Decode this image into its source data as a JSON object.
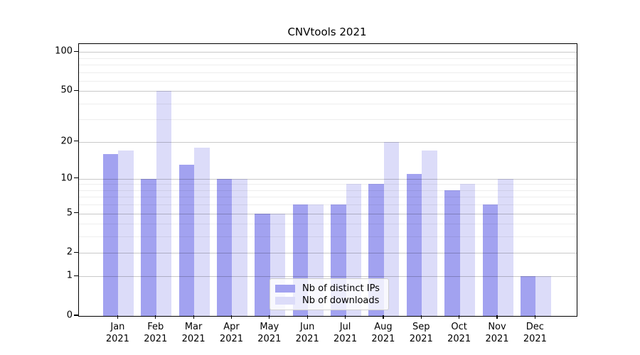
{
  "title": "CNVtools 2021",
  "colors": {
    "distinct_ips_bar": "#a2a2f0",
    "downloads_bar": "#dcdcf9",
    "grid_major": "#c9c9c9",
    "grid_minor": "#ededed",
    "axis": "#000000"
  },
  "legend": {
    "items": [
      {
        "label": "Nb of distinct IPs",
        "color": "#a2a2f0"
      },
      {
        "label": "Nb of downloads",
        "color": "#dcdcf9"
      }
    ]
  },
  "chart_data": {
    "type": "bar",
    "title": "CNVtools 2021",
    "categories": [
      "Jan 2021",
      "Feb 2021",
      "Mar 2021",
      "Apr 2021",
      "May 2021",
      "Jun 2021",
      "Jul 2021",
      "Aug 2021",
      "Sep 2021",
      "Oct 2021",
      "Nov 2021",
      "Dec 2021"
    ],
    "series": [
      {
        "name": "Nb of distinct IPs",
        "color": "#a2a2f0",
        "values": [
          16,
          10,
          13,
          10,
          5,
          6,
          6,
          9,
          11,
          8,
          6,
          1
        ]
      },
      {
        "name": "Nb of downloads",
        "color": "#dcdcf9",
        "values": [
          17,
          50,
          18,
          10,
          5,
          6,
          9,
          20,
          17,
          9,
          10,
          1
        ]
      }
    ],
    "xlabel": "",
    "ylabel": "",
    "y_ticks": [
      0,
      1,
      2,
      5,
      10,
      20,
      50,
      100
    ],
    "y_minor_ticks": [
      3,
      4,
      6,
      7,
      8,
      9,
      30,
      40,
      60,
      70,
      80,
      90
    ],
    "scale": "log1p",
    "ylim": [
      0,
      115
    ],
    "grid": true,
    "legend_position": "lower-center"
  }
}
